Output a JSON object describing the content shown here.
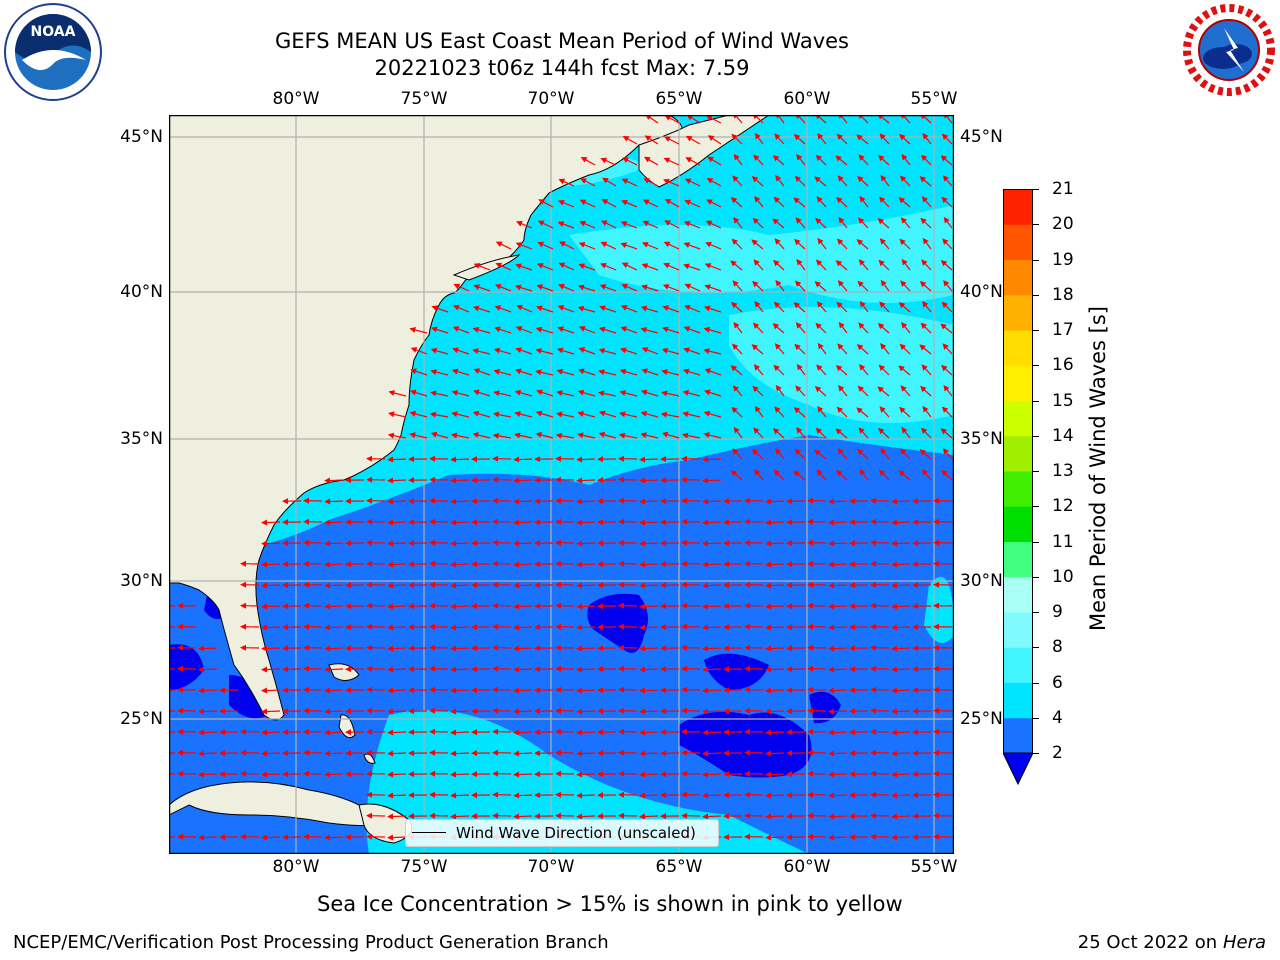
{
  "title": {
    "line1": "GEFS MEAN US East Coast Mean Period of Wind Waves",
    "line2": "20221023 t06z 144h fcst   Max: 7.59"
  },
  "map": {
    "lon_ticks": [
      "80°W",
      "75°W",
      "70°W",
      "65°W",
      "60°W",
      "55°W"
    ],
    "lat_ticks": [
      "45°N",
      "40°N",
      "35°N",
      "30°N",
      "25°N"
    ],
    "extent": {
      "lon_min": -85,
      "lon_max": -54.2,
      "lat_min": 20.5,
      "lat_max": 46
    },
    "legend_label": "Wind Wave Direction (unscaled)",
    "arrow_color": "#ff0000",
    "land_color": "#efefdf",
    "grid_color": "#b0b0b0"
  },
  "colorbar": {
    "label": "Mean Period of Wind Waves [s]",
    "ticks": [
      "2",
      "4",
      "6",
      "8",
      "9",
      "10",
      "11",
      "12",
      "13",
      "14",
      "15",
      "16",
      "17",
      "18",
      "19",
      "20",
      "21"
    ],
    "colors": [
      "#1a73ff",
      "#00e5ff",
      "#40f5ff",
      "#80faff",
      "#aafff5",
      "#40ff80",
      "#00e000",
      "#40ee00",
      "#a0ee00",
      "#ccff00",
      "#ffee00",
      "#ffdd00",
      "#ffb000",
      "#ff8800",
      "#ff5500",
      "#ff2200"
    ],
    "under_color": "#0000ee"
  },
  "note": "Sea Ice Concentration > 15% is shown in pink to yellow",
  "footer": {
    "left": "NCEP/EMC/Verification Post Processing Product Generation Branch",
    "right_date": "25 Oct 2022 on ",
    "right_host": "Hera"
  },
  "logos": {
    "noaa": "NOAA",
    "nws_ring": "NATIONAL WEATHER SERVICE",
    "noaa_ring": "NATIONAL OCEANIC AND ATMOSPHERIC ADMINISTRATION"
  }
}
